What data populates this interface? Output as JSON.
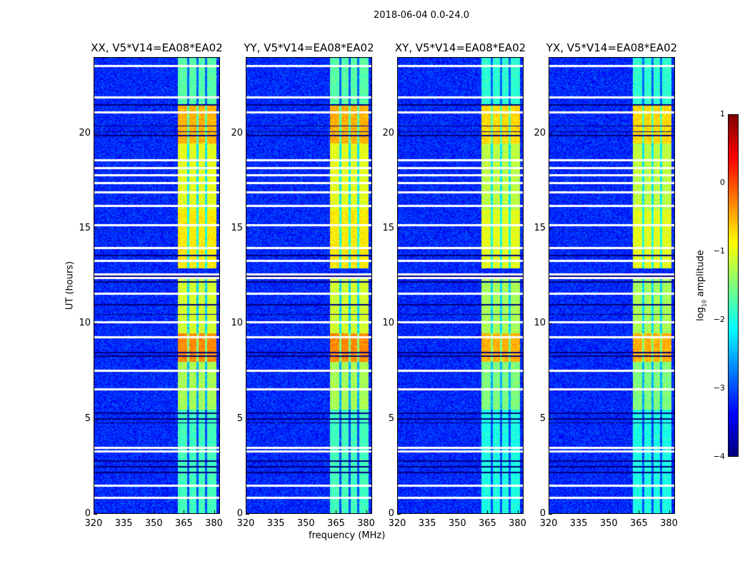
{
  "figure_title": "2018-06-04 0.0-24.0",
  "chart_data": {
    "type": "heatmap",
    "title": "2018-06-04 0.0-24.0",
    "xlabel": "frequency (MHz)",
    "ylabel": "UT (hours)",
    "xlim": [
      320,
      383
    ],
    "ylim": [
      0,
      24
    ],
    "xticks": [
      "320",
      "335",
      "350",
      "365",
      "380"
    ],
    "yticks": [
      "0",
      "5",
      "10",
      "15",
      "20"
    ],
    "panels": [
      {
        "title": "XX, V5*V14=EA08*EA02"
      },
      {
        "title": "YY, V5*V14=EA08*EA02"
      },
      {
        "title": "XY, V5*V14=EA08*EA02"
      },
      {
        "title": "YX, V5*V14=EA08*EA02"
      }
    ],
    "colorbar": {
      "label_main": "log",
      "label_sub": "10",
      "label_rest": " amplitude",
      "range": [
        -4,
        1
      ],
      "ticks": [
        "1",
        "0",
        "−1",
        "−2",
        "−3",
        "−4"
      ],
      "colormap": "jet"
    },
    "background_level": -3.2,
    "rfi_band_MHz": [
      362,
      381
    ],
    "rfi_subband_gaps_MHz": [
      367,
      371.5,
      376
    ],
    "rfi_levels": [
      {
        "hours": [
          0,
          5.5
        ],
        "level": -2.0
      },
      {
        "hours": [
          5.5,
          8
        ],
        "level": -1.5
      },
      {
        "hours": [
          8,
          9.5
        ],
        "level": -0.5
      },
      {
        "hours": [
          9.5,
          12.5
        ],
        "level": -1.3
      },
      {
        "hours": [
          12.9,
          16
        ],
        "level": -1.0
      },
      {
        "hours": [
          16,
          19.5
        ],
        "level": -1.2
      },
      {
        "hours": [
          19.5,
          21.5
        ],
        "level": -0.7
      },
      {
        "hours": [
          21.5,
          24
        ],
        "level": -1.9
      }
    ],
    "flagged_rows_hours": [
      0.85,
      1.5,
      3.3,
      3.5,
      6.55,
      7.55,
      9.3,
      10.1,
      11.6,
      12.4,
      12.6,
      13.3,
      14.0,
      15.2,
      16.2,
      16.9,
      17.4,
      17.8,
      18.2,
      18.6,
      21.1,
      21.9,
      23.55
    ],
    "dark_rows_hours": [
      2.2,
      2.5,
      2.8,
      4.8,
      5.0,
      5.3,
      8.3,
      8.5,
      10.5,
      11.0,
      12.2,
      12.5,
      13.6,
      19.9,
      20.1,
      20.4,
      21.5
    ]
  }
}
